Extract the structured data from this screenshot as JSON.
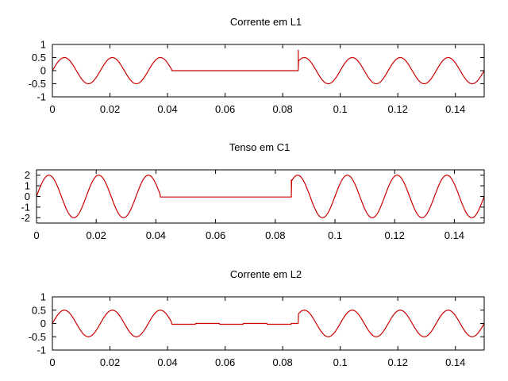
{
  "colors": {
    "trace": "#cc0000"
  },
  "chart_data": [
    {
      "type": "line",
      "title": "Corrente em L1",
      "xlim": [
        0,
        0.15
      ],
      "ylim": [
        -1,
        1
      ],
      "x_ticks": [
        0,
        0.02,
        0.04,
        0.06,
        0.08,
        0.1,
        0.12,
        0.14
      ],
      "x_tick_labels": [
        "0",
        "0.02",
        "0.04",
        "0.06",
        "0.08",
        "0.1",
        "0.12",
        "0.14"
      ],
      "y_ticks": [
        1,
        0.5,
        0,
        -0.5,
        -1
      ],
      "y_tick_labels": [
        "1",
        "0.5",
        "0",
        "-0.5",
        "-1"
      ],
      "grid": false,
      "series": [
        {
          "shape": "sine",
          "amplitude": 0.5,
          "frequency_hz": 60,
          "flat_interval": [
            0.0414,
            0.0854
          ],
          "flat_value": 0.0,
          "spike": {
            "x": 0.0854,
            "y": 0.8
          },
          "values_outside_flat": "0.5*sin(2*pi*60*t)"
        }
      ]
    },
    {
      "type": "line",
      "title": "Tenso em C1",
      "xlim": [
        0,
        0.15
      ],
      "ylim": [
        -2.5,
        2.5
      ],
      "x_ticks": [
        0,
        0.02,
        0.04,
        0.06,
        0.08,
        0.1,
        0.12,
        0.14
      ],
      "x_tick_labels": [
        "0",
        "0.02",
        "0.04",
        "0.06",
        "0.08",
        "0.1",
        "0.12",
        "0.14"
      ],
      "y_ticks": [
        2,
        1,
        0,
        -1,
        -2
      ],
      "y_tick_labels": [
        "2",
        "1",
        "0",
        "-1",
        "-2"
      ],
      "grid": false,
      "series": [
        {
          "shape": "sine",
          "amplitude": 2,
          "frequency_hz": 60,
          "flat_interval": [
            0.0414,
            0.0854
          ],
          "flat_value": -0.05,
          "spike": {
            "x": 0.0854,
            "y": 1.6
          },
          "values_outside_flat": "2*sin(2*pi*60*t)"
        }
      ]
    },
    {
      "type": "line",
      "title": "Corrente em L2",
      "xlim": [
        0,
        0.15
      ],
      "ylim": [
        -1,
        1
      ],
      "x_ticks": [
        0,
        0.02,
        0.04,
        0.06,
        0.08,
        0.1,
        0.12,
        0.14
      ],
      "x_tick_labels": [
        "0",
        "0.02",
        "0.04",
        "0.06",
        "0.08",
        "0.1",
        "0.12",
        "0.14"
      ],
      "y_ticks": [
        1,
        0.5,
        0,
        -0.5,
        -1
      ],
      "y_tick_labels": [
        "1",
        "0.5",
        "0",
        "-0.5",
        "-1"
      ],
      "grid": false,
      "series": [
        {
          "shape": "sine",
          "amplitude": 0.5,
          "frequency_hz": 60,
          "flat_interval": [
            0.0414,
            0.0854
          ],
          "flat_value": -0.03,
          "flat_ripple": 0.03,
          "values_outside_flat": "0.5*sin(2*pi*60*t)"
        }
      ]
    }
  ]
}
